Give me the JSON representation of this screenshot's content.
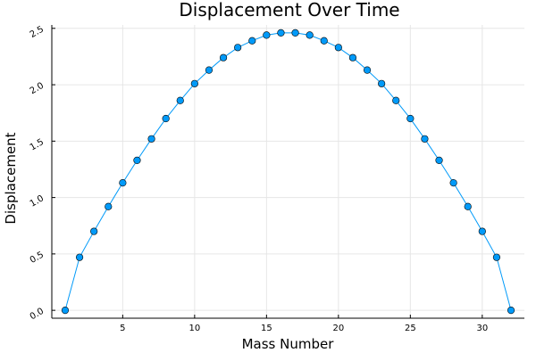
{
  "chart_data": {
    "type": "line",
    "title": "Displacement Over Time",
    "xlabel": "Mass Number",
    "ylabel": "Displacement",
    "xlim": [
      0.07,
      32.93
    ],
    "ylim": [
      -0.07,
      2.53
    ],
    "xticks": [
      5,
      10,
      15,
      20,
      25,
      30
    ],
    "xtick_labels": [
      "5",
      "10",
      "15",
      "20",
      "25",
      "30"
    ],
    "yticks": [
      0.0,
      0.5,
      1.0,
      1.5,
      2.0,
      2.5
    ],
    "ytick_labels": [
      "0.0",
      "0.5",
      "1.0",
      "1.5",
      "2.0",
      "2.5"
    ],
    "grid": true,
    "legend": "none",
    "series": [
      {
        "color": "#009af9",
        "marker": "circle",
        "x": [
          1,
          2,
          3,
          4,
          5,
          6,
          7,
          8,
          9,
          10,
          11,
          12,
          13,
          14,
          15,
          16,
          17,
          18,
          19,
          20,
          21,
          22,
          23,
          24,
          25,
          26,
          27,
          28,
          29,
          30,
          31,
          32
        ],
        "y": [
          0.0,
          0.47,
          0.7,
          0.92,
          1.13,
          1.33,
          1.52,
          1.7,
          1.86,
          2.01,
          2.13,
          2.24,
          2.33,
          2.39,
          2.44,
          2.46,
          2.46,
          2.44,
          2.39,
          2.33,
          2.24,
          2.13,
          2.01,
          1.86,
          1.7,
          1.52,
          1.33,
          1.13,
          0.92,
          0.7,
          0.47,
          0.0
        ]
      }
    ]
  }
}
